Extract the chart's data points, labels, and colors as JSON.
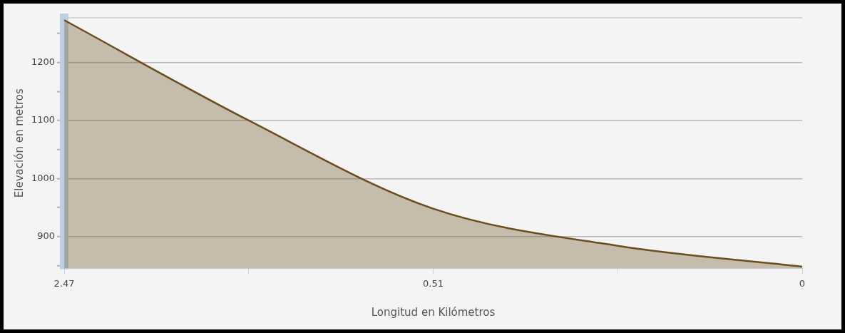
{
  "chart_data": {
    "type": "area",
    "xlabel": "Longitud en Kilómetros",
    "ylabel": "Elevación en metros",
    "categories": [
      "2.47",
      null,
      "0.51",
      null,
      "0"
    ],
    "series": [
      {
        "color": "#6b4e1f",
        "values": [
          1273,
          1100,
          948,
          884,
          848
        ]
      }
    ],
    "ylim": [
      845,
      1277
    ],
    "yticks": [
      {
        "value": 850,
        "label": null
      },
      900,
      {
        "value": 950,
        "label": null
      },
      1000,
      {
        "value": 1050,
        "label": null
      },
      1100,
      {
        "value": 1150,
        "label": null
      },
      1200,
      {
        "value": 1250,
        "label": null
      }
    ],
    "grid": "y",
    "legend": false
  }
}
